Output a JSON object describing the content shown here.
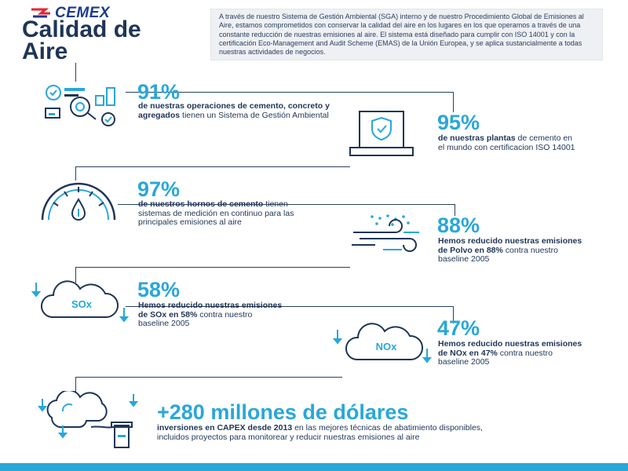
{
  "header": {
    "logo_text": "CEMEX",
    "title_line1": "Calidad de",
    "title_line2": "Aire",
    "intro": "A través de nuestro Sistema de Gestión Ambiental (SGA) interno y de nuestro Procedimiento Global de Emisiones al Aire, estamos comprometidos con conservar la calidad del aire en los lugares en los que operamos a través de una constante reducción de nuestras emisiones al aire. El sistema está diseñado para cumplir con ISO 14001 y con la certificación Eco-Management and Audit Scheme (EMAS) de la Unión Europea, y se aplica sustancialmente a todas nuestras actividades de negocios."
  },
  "stats": [
    {
      "value": "91%",
      "bold": "de nuestras operaciones de cemento, concreto y agregados",
      "rest": " tienen un Sistema de Gestión Ambiental",
      "icon": "operations-gears-icon"
    },
    {
      "value": "95%",
      "bold": "de nuestras plantas",
      "rest": " de cemento en el mundo con certificacion ISO 14001",
      "icon": "certificate-shield-icon"
    },
    {
      "value": "97%",
      "bold": "de nuestros hornos de cemento",
      "rest": " tienen sistemas de medición en continuo para las principales emisiones al aire",
      "icon": "gauge-meter-icon"
    },
    {
      "value": "88%",
      "bold": "Hemos reducido nuestras emisiones de Polvo en 88%",
      "rest": " contra nuestro baseline 2005",
      "icon": "wind-dust-icon"
    },
    {
      "value": "58%",
      "bold": "Hemos reducido nuestras emisiones de SOx en 58%",
      "rest": " contra nuestro baseline 2005",
      "icon": "sox-cloud-icon",
      "cloud_label": "SOx"
    },
    {
      "value": "47%",
      "bold": "Hemos reducido nuestras emisiones de NOx en 47%",
      "rest": " contra nuestro baseline 2005",
      "icon": "nox-cloud-icon",
      "cloud_label": "NOx"
    },
    {
      "value": "+280 millones de dólares",
      "bold": "inversiones en CAPEX desde 2013",
      "rest": " en las mejores técnicas de abatimiento disponibles, incluidos proyectos para monitorear y reducir nuestras emisiones al aire",
      "icon": "chimney-smoke-icon"
    }
  ],
  "colors": {
    "accent": "#2aa7d8",
    "navy": "#1f3557",
    "logo_red": "#e3262f",
    "logo_blue": "#1a3a8f"
  }
}
